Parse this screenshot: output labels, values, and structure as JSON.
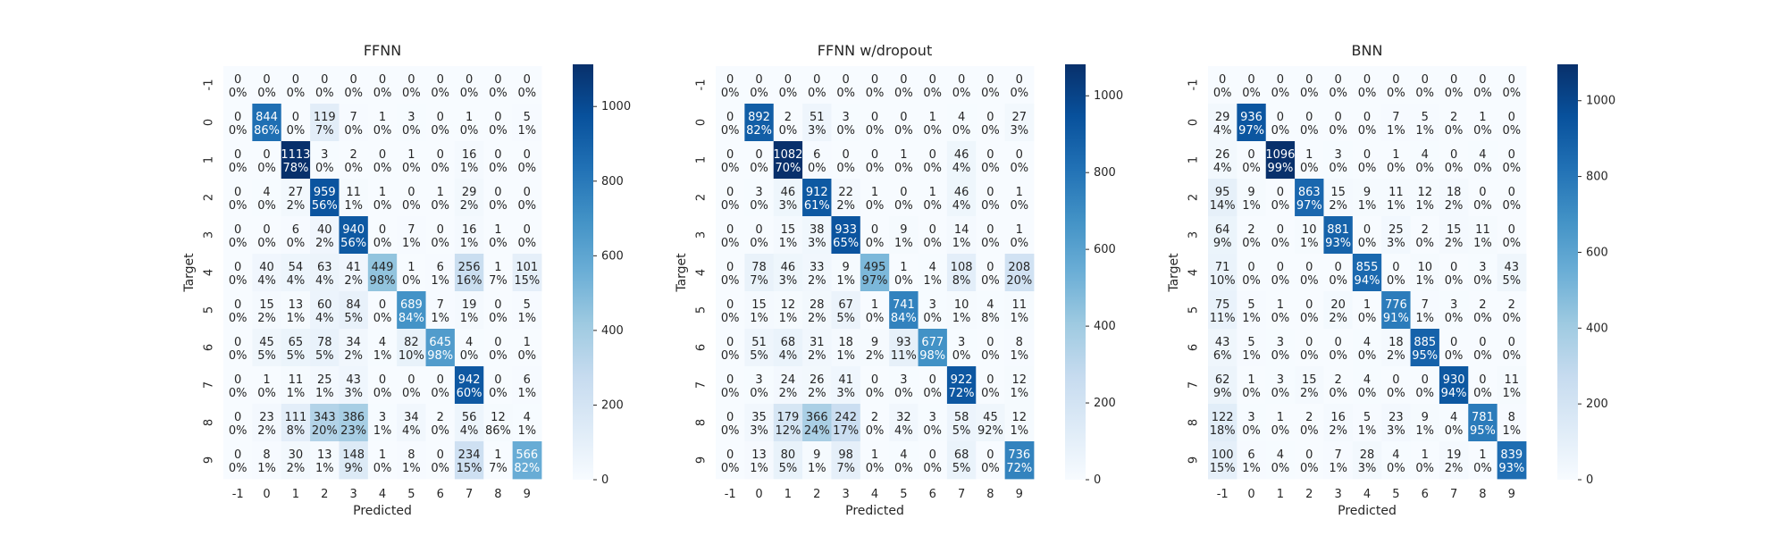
{
  "chart_data": [
    {
      "type": "heatmap",
      "title": "FFNN",
      "xlabel": "Predicted",
      "ylabel": "Target",
      "x_labels": [
        "-1",
        "0",
        "1",
        "2",
        "3",
        "4",
        "5",
        "6",
        "7",
        "8",
        "9"
      ],
      "y_labels": [
        "-1",
        "0",
        "1",
        "2",
        "3",
        "4",
        "5",
        "6",
        "7",
        "8",
        "9"
      ],
      "colormap": "Blues",
      "colorbar": {
        "range": [
          0,
          1113
        ],
        "ticks": [
          0,
          200,
          400,
          600,
          800,
          1000
        ]
      },
      "counts": [
        [
          0,
          0,
          0,
          0,
          0,
          0,
          0,
          0,
          0,
          0,
          0
        ],
        [
          0,
          844,
          0,
          119,
          7,
          1,
          3,
          0,
          1,
          0,
          5
        ],
        [
          0,
          0,
          1113,
          3,
          2,
          0,
          1,
          0,
          16,
          0,
          0
        ],
        [
          0,
          4,
          27,
          959,
          11,
          1,
          0,
          1,
          29,
          0,
          0
        ],
        [
          0,
          0,
          6,
          40,
          940,
          0,
          7,
          0,
          16,
          1,
          0
        ],
        [
          0,
          40,
          54,
          63,
          41,
          449,
          1,
          6,
          256,
          1,
          101
        ],
        [
          0,
          15,
          13,
          60,
          84,
          0,
          689,
          7,
          19,
          0,
          5
        ],
        [
          0,
          45,
          65,
          78,
          34,
          4,
          82,
          645,
          4,
          0,
          1
        ],
        [
          0,
          1,
          11,
          25,
          43,
          0,
          0,
          0,
          942,
          0,
          6
        ],
        [
          0,
          23,
          111,
          343,
          386,
          3,
          34,
          2,
          56,
          12,
          4
        ],
        [
          0,
          8,
          30,
          13,
          148,
          1,
          8,
          0,
          234,
          1,
          566
        ]
      ],
      "percents": [
        [
          "0%",
          "0%",
          "0%",
          "0%",
          "0%",
          "0%",
          "0%",
          "0%",
          "0%",
          "0%",
          "0%"
        ],
        [
          "0%",
          "86%",
          "0%",
          "7%",
          "0%",
          "0%",
          "0%",
          "0%",
          "0%",
          "0%",
          "1%"
        ],
        [
          "0%",
          "0%",
          "78%",
          "0%",
          "0%",
          "0%",
          "0%",
          "0%",
          "1%",
          "0%",
          "0%"
        ],
        [
          "0%",
          "0%",
          "2%",
          "56%",
          "1%",
          "0%",
          "0%",
          "0%",
          "2%",
          "0%",
          "0%"
        ],
        [
          "0%",
          "0%",
          "0%",
          "2%",
          "56%",
          "0%",
          "1%",
          "0%",
          "1%",
          "0%",
          "0%"
        ],
        [
          "0%",
          "4%",
          "4%",
          "4%",
          "2%",
          "98%",
          "0%",
          "1%",
          "16%",
          "7%",
          "15%"
        ],
        [
          "0%",
          "2%",
          "1%",
          "4%",
          "5%",
          "0%",
          "84%",
          "1%",
          "1%",
          "0%",
          "1%"
        ],
        [
          "0%",
          "5%",
          "5%",
          "5%",
          "2%",
          "1%",
          "10%",
          "98%",
          "0%",
          "0%",
          "0%"
        ],
        [
          "0%",
          "0%",
          "1%",
          "1%",
          "3%",
          "0%",
          "0%",
          "0%",
          "60%",
          "0%",
          "1%"
        ],
        [
          "0%",
          "2%",
          "8%",
          "20%",
          "23%",
          "1%",
          "4%",
          "0%",
          "4%",
          "86%",
          "1%"
        ],
        [
          "0%",
          "1%",
          "2%",
          "1%",
          "9%",
          "0%",
          "1%",
          "0%",
          "15%",
          "7%",
          "82%"
        ]
      ]
    },
    {
      "type": "heatmap",
      "title": "FFNN w/dropout",
      "xlabel": "Predicted",
      "ylabel": "Target",
      "x_labels": [
        "-1",
        "0",
        "1",
        "2",
        "3",
        "4",
        "5",
        "6",
        "7",
        "8",
        "9"
      ],
      "y_labels": [
        "-1",
        "0",
        "1",
        "2",
        "3",
        "4",
        "5",
        "6",
        "7",
        "8",
        "9"
      ],
      "colormap": "Blues",
      "colorbar": {
        "range": [
          0,
          1082
        ],
        "ticks": [
          0,
          200,
          400,
          600,
          800,
          1000
        ]
      },
      "counts": [
        [
          0,
          0,
          0,
          0,
          0,
          0,
          0,
          0,
          0,
          0,
          0
        ],
        [
          0,
          892,
          2,
          51,
          3,
          0,
          0,
          1,
          4,
          0,
          27
        ],
        [
          0,
          0,
          1082,
          6,
          0,
          0,
          1,
          0,
          46,
          0,
          0
        ],
        [
          0,
          3,
          46,
          912,
          22,
          1,
          0,
          1,
          46,
          0,
          1
        ],
        [
          0,
          0,
          15,
          38,
          933,
          0,
          9,
          0,
          14,
          0,
          1
        ],
        [
          0,
          78,
          46,
          33,
          9,
          495,
          1,
          4,
          108,
          0,
          208
        ],
        [
          0,
          15,
          12,
          28,
          67,
          1,
          741,
          3,
          10,
          4,
          11
        ],
        [
          0,
          51,
          68,
          31,
          18,
          9,
          93,
          677,
          3,
          0,
          8
        ],
        [
          0,
          3,
          24,
          26,
          41,
          0,
          3,
          0,
          922,
          0,
          12
        ],
        [
          0,
          35,
          179,
          366,
          242,
          2,
          32,
          3,
          58,
          45,
          12
        ],
        [
          0,
          13,
          80,
          9,
          98,
          1,
          4,
          0,
          68,
          0,
          736
        ]
      ],
      "percents": [
        [
          "0%",
          "0%",
          "0%",
          "0%",
          "0%",
          "0%",
          "0%",
          "0%",
          "0%",
          "0%",
          "0%"
        ],
        [
          "0%",
          "82%",
          "0%",
          "3%",
          "0%",
          "0%",
          "0%",
          "0%",
          "0%",
          "0%",
          "3%"
        ],
        [
          "0%",
          "0%",
          "70%",
          "0%",
          "0%",
          "0%",
          "0%",
          "0%",
          "4%",
          "0%",
          "0%"
        ],
        [
          "0%",
          "0%",
          "3%",
          "61%",
          "2%",
          "0%",
          "0%",
          "0%",
          "4%",
          "0%",
          "0%"
        ],
        [
          "0%",
          "0%",
          "1%",
          "3%",
          "65%",
          "0%",
          "1%",
          "0%",
          "1%",
          "0%",
          "0%"
        ],
        [
          "0%",
          "7%",
          "3%",
          "2%",
          "1%",
          "97%",
          "0%",
          "1%",
          "8%",
          "0%",
          "20%"
        ],
        [
          "0%",
          "1%",
          "1%",
          "2%",
          "5%",
          "0%",
          "84%",
          "0%",
          "1%",
          "8%",
          "1%"
        ],
        [
          "0%",
          "5%",
          "4%",
          "2%",
          "1%",
          "2%",
          "11%",
          "98%",
          "0%",
          "0%",
          "1%"
        ],
        [
          "0%",
          "0%",
          "2%",
          "2%",
          "3%",
          "0%",
          "0%",
          "0%",
          "72%",
          "0%",
          "1%"
        ],
        [
          "0%",
          "3%",
          "12%",
          "24%",
          "17%",
          "0%",
          "4%",
          "0%",
          "5%",
          "92%",
          "1%"
        ],
        [
          "0%",
          "1%",
          "5%",
          "1%",
          "7%",
          "0%",
          "0%",
          "0%",
          "5%",
          "0%",
          "72%"
        ]
      ]
    },
    {
      "type": "heatmap",
      "title": "BNN",
      "xlabel": "Predicted",
      "ylabel": "Target",
      "x_labels": [
        "-1",
        "0",
        "1",
        "2",
        "3",
        "4",
        "5",
        "6",
        "7",
        "8",
        "9"
      ],
      "y_labels": [
        "-1",
        "0",
        "1",
        "2",
        "3",
        "4",
        "5",
        "6",
        "7",
        "8",
        "9"
      ],
      "colormap": "Blues",
      "colorbar": {
        "range": [
          0,
          1096
        ],
        "ticks": [
          0,
          200,
          400,
          600,
          800,
          1000
        ]
      },
      "counts": [
        [
          0,
          0,
          0,
          0,
          0,
          0,
          0,
          0,
          0,
          0,
          0
        ],
        [
          29,
          936,
          0,
          0,
          0,
          0,
          7,
          5,
          2,
          1,
          0
        ],
        [
          26,
          0,
          1096,
          1,
          3,
          0,
          1,
          4,
          0,
          4,
          0
        ],
        [
          95,
          9,
          0,
          863,
          15,
          9,
          11,
          12,
          18,
          0,
          0
        ],
        [
          64,
          2,
          0,
          10,
          881,
          0,
          25,
          2,
          15,
          11,
          0
        ],
        [
          71,
          0,
          0,
          0,
          0,
          855,
          0,
          10,
          0,
          3,
          43
        ],
        [
          75,
          5,
          1,
          0,
          20,
          1,
          776,
          7,
          3,
          2,
          2
        ],
        [
          43,
          5,
          3,
          0,
          0,
          4,
          18,
          885,
          0,
          0,
          0
        ],
        [
          62,
          1,
          3,
          15,
          2,
          4,
          0,
          0,
          930,
          0,
          11
        ],
        [
          122,
          3,
          1,
          2,
          16,
          5,
          23,
          9,
          4,
          781,
          8
        ],
        [
          100,
          6,
          4,
          0,
          7,
          28,
          4,
          1,
          19,
          1,
          839
        ]
      ],
      "percents": [
        [
          "0%",
          "0%",
          "0%",
          "0%",
          "0%",
          "0%",
          "0%",
          "0%",
          "0%",
          "0%",
          "0%"
        ],
        [
          "4%",
          "97%",
          "0%",
          "0%",
          "0%",
          "0%",
          "1%",
          "1%",
          "0%",
          "0%",
          "0%"
        ],
        [
          "4%",
          "0%",
          "99%",
          "0%",
          "0%",
          "0%",
          "0%",
          "0%",
          "0%",
          "0%",
          "0%"
        ],
        [
          "14%",
          "1%",
          "0%",
          "97%",
          "2%",
          "1%",
          "1%",
          "1%",
          "2%",
          "0%",
          "0%"
        ],
        [
          "9%",
          "0%",
          "0%",
          "1%",
          "93%",
          "0%",
          "3%",
          "0%",
          "2%",
          "1%",
          "0%"
        ],
        [
          "10%",
          "0%",
          "0%",
          "0%",
          "0%",
          "94%",
          "0%",
          "1%",
          "0%",
          "0%",
          "5%"
        ],
        [
          "11%",
          "1%",
          "0%",
          "0%",
          "2%",
          "0%",
          "91%",
          "1%",
          "0%",
          "0%",
          "0%"
        ],
        [
          "6%",
          "1%",
          "0%",
          "0%",
          "0%",
          "0%",
          "2%",
          "95%",
          "0%",
          "0%",
          "0%"
        ],
        [
          "9%",
          "0%",
          "0%",
          "2%",
          "0%",
          "0%",
          "0%",
          "0%",
          "94%",
          "0%",
          "1%"
        ],
        [
          "18%",
          "0%",
          "0%",
          "0%",
          "2%",
          "1%",
          "3%",
          "1%",
          "0%",
          "95%",
          "1%"
        ],
        [
          "15%",
          "1%",
          "0%",
          "0%",
          "1%",
          "3%",
          "0%",
          "0%",
          "2%",
          "0%",
          "93%"
        ]
      ]
    }
  ]
}
